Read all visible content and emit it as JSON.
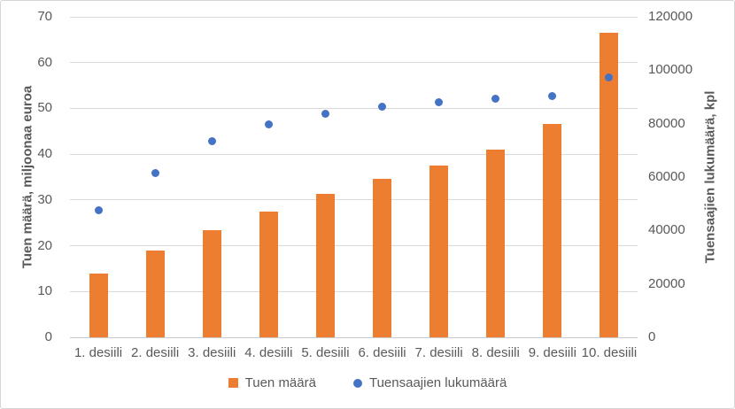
{
  "chart_data": {
    "type": "combo",
    "title": "",
    "categories": [
      "1. desiili",
      "2. desiili",
      "3. desiili",
      "4. desiili",
      "5. desiili",
      "6. desiili",
      "7. desiili",
      "8. desiili",
      "9. desiili",
      "10. desiili"
    ],
    "series": [
      {
        "name": "Tuen määrä",
        "type": "bar",
        "axis": "left",
        "color": "#ED7D31",
        "values": [
          14.0,
          19.0,
          23.4,
          27.4,
          31.3,
          34.6,
          37.6,
          41.0,
          46.6,
          66.5
        ]
      },
      {
        "name": "Tuensaajien lukumäärä",
        "type": "scatter",
        "axis": "right",
        "color": "#4472C4",
        "values": [
          47500,
          61600,
          73500,
          79800,
          83800,
          86200,
          88100,
          89500,
          90300,
          97200
        ]
      }
    ],
    "left_axis": {
      "title": "Tuen määrä, miljoonaa euroa",
      "min": 0,
      "max": 70,
      "ticks": [
        0,
        10,
        20,
        30,
        40,
        50,
        60,
        70
      ],
      "tick_labels": [
        "0",
        "10",
        "20",
        "30",
        "40",
        "50",
        "60",
        "70"
      ]
    },
    "right_axis": {
      "title": "Tuensaajien lukumäärä, kpl",
      "min": 0,
      "max": 120000,
      "ticks": [
        0,
        20000,
        40000,
        60000,
        80000,
        100000,
        120000
      ],
      "tick_labels": [
        "0",
        "20000",
        "40000",
        "60000",
        "80000",
        "100000",
        "120000"
      ]
    },
    "legend": {
      "position": "bottom",
      "entries": [
        "Tuen määrä",
        "Tuensaajien lukumäärä"
      ]
    },
    "grid": true,
    "colors": {
      "grid": "#D9D9D9",
      "axis_line": "#C9C9C9",
      "text": "#595959"
    }
  }
}
